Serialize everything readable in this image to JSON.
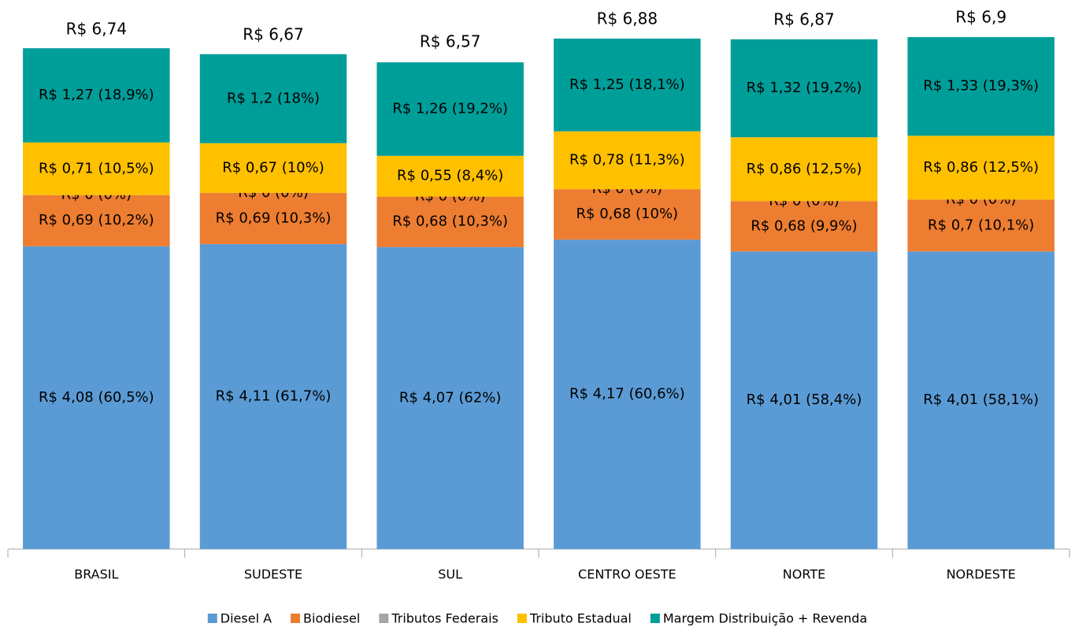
{
  "chart_data": {
    "type": "stacked_bar",
    "categories": [
      "BRASIL",
      "SUDESTE",
      "SUL",
      "CENTRO OESTE",
      "NORTE",
      "NORDESTE"
    ],
    "series": [
      {
        "name": "Diesel A",
        "color": "#5b9bd5",
        "values": [
          4.08,
          4.11,
          4.07,
          4.17,
          4.01,
          4.01
        ],
        "value_labels": [
          "R$ 4,08 (60,5%)",
          "R$ 4,11 (61,7%)",
          "R$ 4,07 (62%)",
          "R$ 4,17 (60,6%)",
          "R$ 4,01 (58,4%)",
          "R$ 4,01 (58,1%)"
        ]
      },
      {
        "name": "Biodiesel",
        "color": "#ed7d31",
        "values": [
          0.69,
          0.69,
          0.68,
          0.68,
          0.68,
          0.7
        ],
        "value_labels": [
          "R$ 0,69 (10,2%)",
          "R$ 0,69 (10,3%)",
          "R$ 0,68 (10,3%)",
          "R$ 0,68 (10%)",
          "R$ 0,68 (9,9%)",
          "R$ 0,7 (10,1%)"
        ]
      },
      {
        "name": "Tributos Federais",
        "color": "#a5a5a5",
        "values": [
          0,
          0,
          0,
          0,
          0,
          0
        ],
        "value_labels": [
          "R$ 0 (0%)",
          "R$ 0 (0%)",
          "R$ 0 (0%)",
          "R$ 0 (0%)",
          "R$ 0 (0%)",
          "R$ 0 (0%)"
        ]
      },
      {
        "name": "Tributo Estadual",
        "color": "#ffc000",
        "values": [
          0.71,
          0.67,
          0.55,
          0.78,
          0.86,
          0.86
        ],
        "value_labels": [
          "R$ 0,71 (10,5%)",
          "R$ 0,67 (10%)",
          "R$ 0,55 (8,4%)",
          "R$ 0,78 (11,3%)",
          "R$ 0,86 (12,5%)",
          "R$ 0,86 (12,5%)"
        ]
      },
      {
        "name": "Margem Distribuição + Revenda",
        "color": "#009e99",
        "values": [
          1.27,
          1.2,
          1.26,
          1.25,
          1.32,
          1.33
        ],
        "value_labels": [
          "R$ 1,27 (18,9%)",
          "R$ 1,2 (18%)",
          "R$ 1,26 (19,2%)",
          "R$ 1,25 (18,1%)",
          "R$ 1,32 (19,2%)",
          "R$ 1,33 (19,3%)"
        ]
      }
    ],
    "totals": {
      "values": [
        6.74,
        6.67,
        6.57,
        6.88,
        6.87,
        6.9
      ],
      "value_labels": [
        "R$ 6,74",
        "R$ 6,67",
        "R$ 6,57",
        "R$ 6,88",
        "R$ 6,87",
        "R$ 6,9"
      ]
    },
    "ylim": [
      0,
      7.4
    ],
    "legend": "bottom"
  }
}
